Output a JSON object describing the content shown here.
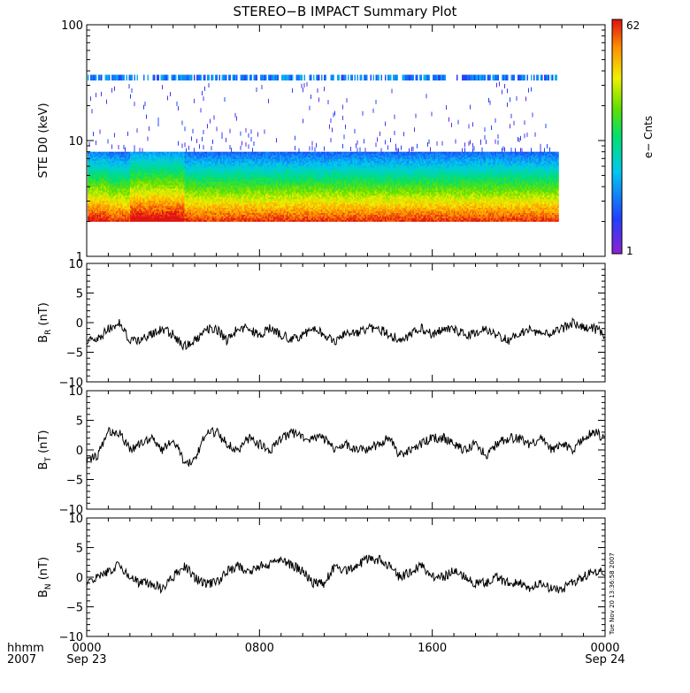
{
  "title": "STEREO−B IMPACT Summary Plot",
  "timestamp_label": "Tue Nov 20 13:36:58 2007",
  "x_axis": {
    "row1_left": "hhmm",
    "row2_left": "2007",
    "ticks": [
      {
        "hours": 0,
        "label": "0000",
        "date": "Sep 23"
      },
      {
        "hours": 8,
        "label": "0800",
        "date": ""
      },
      {
        "hours": 16,
        "label": "1600",
        "date": ""
      },
      {
        "hours": 24,
        "label": "0000",
        "date": "Sep 24"
      }
    ],
    "range_hours": [
      0,
      24
    ]
  },
  "colorbar": {
    "label": "e− Cnts",
    "max_label": "62",
    "min_label": "1",
    "range": [
      1,
      62
    ]
  },
  "chart_data": [
    {
      "type": "heatmap",
      "ylabel": "STE D0 (keV)",
      "yscale": "log",
      "ylim": [
        1,
        100
      ],
      "y_ticks": [
        {
          "value": 1,
          "label": "1"
        },
        {
          "value": 10,
          "label": "10"
        },
        {
          "value": 100,
          "label": "100"
        }
      ],
      "data_end_hours": 21.8,
      "energy_lowest_keV": 2,
      "counts_range": [
        1,
        62
      ],
      "saturated_band_keV": [
        33,
        37
      ],
      "background_band_keV": [
        2,
        8
      ],
      "sparse_band_keV": [
        8,
        30
      ]
    },
    {
      "type": "line",
      "ylabel_main": "B",
      "ylabel_sub": "R",
      "ylabel_unit": " (nT)",
      "ylim": [
        -10,
        10
      ],
      "y_ticks": [
        {
          "value": 10,
          "label": "10"
        },
        {
          "value": 5,
          "label": "5"
        },
        {
          "value": 0,
          "label": "0"
        },
        {
          "value": -5,
          "label": "−5"
        },
        {
          "value": -10,
          "label": "−10"
        }
      ],
      "x_hours": [
        0,
        0.5,
        1,
        1.5,
        2,
        2.5,
        3,
        3.5,
        4,
        4.5,
        5,
        5.5,
        6,
        6.5,
        7,
        7.5,
        8,
        8.5,
        9,
        9.5,
        10,
        10.5,
        11,
        11.5,
        12,
        12.5,
        13,
        13.5,
        14,
        14.5,
        15,
        15.5,
        16,
        16.5,
        17,
        17.5,
        18,
        18.5,
        19,
        19.5,
        20,
        20.5,
        21,
        21.5,
        22,
        22.5,
        23,
        23.5,
        24
      ],
      "values": [
        -3,
        -3,
        -1,
        0,
        -3,
        -3,
        -2,
        -1,
        -2,
        -4,
        -3,
        -1,
        -1,
        -3,
        -1,
        -1,
        -2,
        -1,
        -2,
        -3,
        -2,
        -1,
        -2,
        -3,
        -2,
        -2,
        -1,
        -1,
        -2,
        -3,
        -2,
        -1,
        -2,
        -1,
        -1,
        -2,
        -2,
        -1,
        -2,
        -3,
        -2,
        -1,
        -2,
        -2,
        -1,
        0,
        -1,
        -1,
        -2
      ]
    },
    {
      "type": "line",
      "ylabel_main": "B",
      "ylabel_sub": "T",
      "ylabel_unit": " (nT)",
      "ylim": [
        -10,
        10
      ],
      "y_ticks": [
        {
          "value": 10,
          "label": "10"
        },
        {
          "value": 5,
          "label": "5"
        },
        {
          "value": 0,
          "label": "0"
        },
        {
          "value": -5,
          "label": "−5"
        },
        {
          "value": -10,
          "label": "−10"
        }
      ],
      "x_hours": [
        0,
        0.5,
        1,
        1.5,
        2,
        2.5,
        3,
        3.5,
        4,
        4.5,
        5,
        5.5,
        6,
        6.5,
        7,
        7.5,
        8,
        8.5,
        9,
        9.5,
        10,
        10.5,
        11,
        11.5,
        12,
        12.5,
        13,
        13.5,
        14,
        14.5,
        15,
        15.5,
        16,
        16.5,
        17,
        17.5,
        18,
        18.5,
        19,
        19.5,
        20,
        20.5,
        21,
        21.5,
        22,
        22.5,
        23,
        23.5,
        24
      ],
      "values": [
        -2,
        -1,
        3,
        3,
        0,
        1,
        2,
        0,
        2,
        -2,
        -2,
        3,
        3,
        1,
        0,
        2,
        1,
        0,
        2,
        3,
        2,
        2,
        2,
        0,
        1,
        0,
        0,
        1,
        2,
        -1,
        0,
        1,
        2,
        2,
        1,
        0,
        1,
        -1,
        1,
        2,
        2,
        1,
        2,
        0,
        1,
        0,
        2,
        3,
        2
      ]
    },
    {
      "type": "line",
      "ylabel_main": "B",
      "ylabel_sub": "N",
      "ylabel_unit": " (nT)",
      "ylim": [
        -10,
        10
      ],
      "y_ticks": [
        {
          "value": 10,
          "label": "10"
        },
        {
          "value": 5,
          "label": "5"
        },
        {
          "value": 0,
          "label": "0"
        },
        {
          "value": -5,
          "label": "−5"
        },
        {
          "value": -10,
          "label": "−10"
        }
      ],
      "x_hours": [
        0,
        0.5,
        1,
        1.5,
        2,
        2.5,
        3,
        3.5,
        4,
        4.5,
        5,
        5.5,
        6,
        6.5,
        7,
        7.5,
        8,
        8.5,
        9,
        9.5,
        10,
        10.5,
        11,
        11.5,
        12,
        12.5,
        13,
        13.5,
        14,
        14.5,
        15,
        15.5,
        16,
        16.5,
        17,
        17.5,
        18,
        18.5,
        19,
        19.5,
        20,
        20.5,
        21,
        21.5,
        22,
        22.5,
        23,
        23.5,
        24
      ],
      "values": [
        -1,
        0,
        1,
        2,
        0,
        -1,
        -1,
        -2,
        0,
        2,
        0,
        -1,
        -1,
        1,
        2,
        1,
        2,
        2,
        3,
        2,
        1,
        -1,
        -1,
        2,
        1,
        2,
        3,
        3,
        2,
        0,
        1,
        2,
        0,
        0,
        1,
        0,
        -1,
        -1,
        0,
        -1,
        -1,
        -2,
        -1,
        -2,
        -2,
        -1,
        0,
        1,
        1
      ]
    }
  ]
}
